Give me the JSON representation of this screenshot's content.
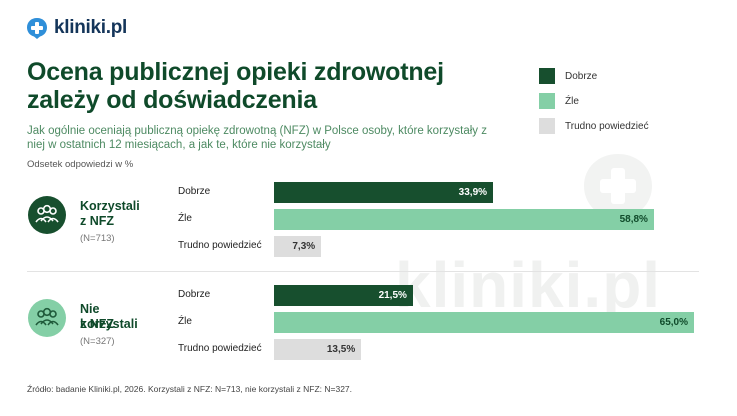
{
  "brand": {
    "logo_text": "kliniki.pl",
    "watermark_text": "kliniki.pl"
  },
  "header": {
    "title": "Ocena publicznej opieki zdrowotnej zależy od doświadczenia",
    "subtitle": "Jak ogólnie oceniają publiczną opiekę zdrowotną (NFZ) w Polsce osoby, które korzystały z niej w ostatnich 12 miesiącach, a jak te, które nie korzystały",
    "unit": "Odsetek odpowiedzi w %"
  },
  "colors": {
    "dobrze": "#174f2e",
    "zle": "#84cfa6",
    "trudno": "#dddddd",
    "brand_blue": "#2f8fd9"
  },
  "chart_data": {
    "type": "bar",
    "orientation": "horizontal",
    "xlim": [
      0,
      65
    ],
    "categories": [
      "Dobrze",
      "Źle",
      "Trudno powiedzieć"
    ],
    "legend": [
      "Dobrze",
      "Źle",
      "Trudno powiedzieć"
    ],
    "legend_position": "top-right",
    "groups": [
      {
        "label_line1": "Korzystali",
        "label_line2": "z NFZ",
        "n_label": "(N=713)",
        "icon": "people-group-icon",
        "values": [
          33.9,
          58.8,
          7.3
        ],
        "value_labels": [
          "33,9%",
          "58,8%",
          "7,3%"
        ]
      },
      {
        "label_line1": "Nie korzystali",
        "label_line2": "z NFZ",
        "n_label": "(N=327)",
        "icon": "people-group-icon",
        "values": [
          21.5,
          65.0,
          13.5
        ],
        "value_labels": [
          "21,5%",
          "65,0%",
          "13,5%"
        ]
      }
    ]
  },
  "footer": {
    "source": "Źródło: badanie Kliniki.pl, 2026. Korzystali z NFZ: N=713, nie korzystali z NFZ: N=327."
  }
}
